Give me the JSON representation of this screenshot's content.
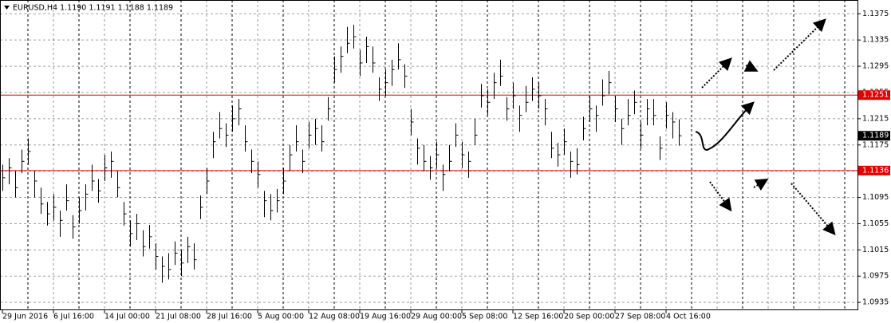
{
  "chart_data": {
    "type": "ohlc",
    "title": "EURUSD,H4  1.1190 1.1191 1.1188 1.1189",
    "categories": [
      "29 Jun 2016",
      null,
      null,
      null,
      null,
      null,
      null,
      null,
      "6 Jul 16:00",
      null,
      null,
      null,
      null,
      null,
      null,
      null,
      "14 Jul 00:00",
      null,
      null,
      null,
      null,
      null,
      null,
      null,
      "21 Jul 08:00",
      null,
      null,
      null,
      null,
      null,
      null,
      null,
      "28 Jul 16:00",
      null,
      null,
      null,
      null,
      null,
      null,
      null,
      "5 Aug 00:00",
      null,
      null,
      null,
      null,
      null,
      null,
      null,
      "12 Aug 08:00",
      null,
      null,
      null,
      null,
      null,
      null,
      null,
      "19 Aug 16:00",
      null,
      null,
      null,
      null,
      null,
      null,
      null,
      "29 Aug 00:00",
      null,
      null,
      null,
      null,
      null,
      null,
      null,
      "5 Sep 08:00",
      null,
      null,
      null,
      null,
      null,
      null,
      null,
      "12 Sep 16:00",
      null,
      null,
      null,
      null,
      null,
      null,
      null,
      "20 Sep 00:00",
      null,
      null,
      null,
      null,
      null,
      null,
      null,
      "27 Sep 08:00",
      null,
      null,
      null,
      null,
      null,
      null,
      null,
      "4 Oct 16:00",
      null,
      null
    ],
    "high": [
      1.1145,
      1.1155,
      1.1135,
      1.1168,
      1.1185,
      1.1135,
      1.111,
      1.1088,
      1.11,
      1.1075,
      1.1115,
      1.1068,
      1.1095,
      1.1115,
      1.1145,
      1.1123,
      1.116,
      1.1165,
      1.1135,
      1.1088,
      1.106,
      1.107,
      1.1045,
      1.1053,
      1.1025,
      1.1005,
      1.101,
      1.1028,
      1.1015,
      1.1035,
      1.1025,
      1.1098,
      1.114,
      1.1195,
      1.1225,
      1.1208,
      1.1235,
      1.1245,
      1.1205,
      1.1168,
      1.115,
      1.1105,
      1.11,
      1.1108,
      1.114,
      1.1175,
      1.1205,
      1.1168,
      1.121,
      1.1215,
      1.1205,
      1.1248,
      1.131,
      1.1325,
      1.1355,
      1.1358,
      1.132,
      1.134,
      1.1325,
      1.1278,
      1.129,
      1.1305,
      1.133,
      1.1298,
      1.123,
      1.1185,
      1.1175,
      1.1158,
      1.118,
      1.1145,
      1.1175,
      1.1208,
      1.118,
      1.1165,
      1.1215,
      1.1268,
      1.126,
      1.1285,
      1.1305,
      1.1248,
      1.127,
      1.1235,
      1.1265,
      1.1278,
      1.127,
      1.1245,
      1.1195,
      1.1178,
      1.12,
      1.1165,
      1.117,
      1.1218,
      1.125,
      1.1235,
      1.1275,
      1.1288,
      1.125,
      1.1215,
      1.1245,
      1.1258,
      1.121,
      1.1245,
      1.1245,
      1.1188,
      1.124,
      1.1225,
      1.1214
    ],
    "low": [
      1.1105,
      1.1115,
      1.1095,
      1.1132,
      1.1145,
      1.1095,
      1.107,
      1.1052,
      1.106,
      1.1035,
      1.1075,
      1.1032,
      1.1055,
      1.1075,
      1.1105,
      1.1087,
      1.112,
      1.1125,
      1.1095,
      1.1052,
      1.102,
      1.103,
      1.1005,
      1.1017,
      1.0985,
      1.0965,
      1.097,
      1.0992,
      1.0975,
      1.0995,
      1.0985,
      1.1062,
      1.11,
      1.1155,
      1.1185,
      1.1172,
      1.1195,
      1.1205,
      1.1165,
      1.1132,
      1.111,
      1.1065,
      1.106,
      1.1072,
      1.11,
      1.1135,
      1.1165,
      1.1132,
      1.117,
      1.1175,
      1.1165,
      1.1212,
      1.127,
      1.1285,
      1.1315,
      1.1322,
      1.128,
      1.13,
      1.1285,
      1.1242,
      1.125,
      1.1265,
      1.129,
      1.1262,
      1.119,
      1.1145,
      1.1135,
      1.1122,
      1.114,
      1.1105,
      1.1135,
      1.1172,
      1.114,
      1.1125,
      1.1175,
      1.1232,
      1.122,
      1.1245,
      1.1265,
      1.1212,
      1.123,
      1.1195,
      1.1225,
      1.1242,
      1.123,
      1.1205,
      1.1155,
      1.1142,
      1.116,
      1.1125,
      1.113,
      1.1182,
      1.121,
      1.1195,
      1.1235,
      1.1252,
      1.121,
      1.1175,
      1.1205,
      1.1222,
      1.117,
      1.1205,
      1.1205,
      1.1152,
      1.12,
      1.1185,
      1.1174
    ],
    "close": [
      1.1125,
      1.114,
      1.111,
      1.115,
      1.1165,
      1.112,
      1.1085,
      1.107,
      1.108,
      1.106,
      1.109,
      1.105,
      1.1075,
      1.11,
      1.112,
      1.1105,
      1.114,
      1.115,
      1.111,
      1.107,
      1.104,
      1.1055,
      1.102,
      1.1035,
      1.1005,
      1.099,
      1.0985,
      1.101,
      1.0995,
      1.102,
      1.1,
      1.108,
      1.112,
      1.118,
      1.12,
      1.119,
      1.1215,
      1.123,
      1.118,
      1.115,
      1.113,
      1.109,
      1.1075,
      1.109,
      1.112,
      1.116,
      1.118,
      1.115,
      1.119,
      1.12,
      1.118,
      1.123,
      1.129,
      1.131,
      1.133,
      1.134,
      1.13,
      1.1325,
      1.13,
      1.126,
      1.127,
      1.129,
      1.1305,
      1.128,
      1.121,
      1.117,
      1.115,
      1.114,
      1.116,
      1.113,
      1.115,
      1.119,
      1.116,
      1.115,
      1.119,
      1.125,
      1.124,
      1.127,
      1.128,
      1.123,
      1.125,
      1.122,
      1.124,
      1.126,
      1.125,
      1.123,
      1.117,
      1.116,
      1.118,
      1.115,
      1.1145,
      1.12,
      1.123,
      1.122,
      1.125,
      1.127,
      1.123,
      1.12,
      1.122,
      1.124,
      1.119,
      1.123,
      1.122,
      1.117,
      1.122,
      1.121,
      1.1189
    ],
    "color": "#000000",
    "ylim": [
      1.0923,
      1.1396
    ],
    "yticks": [
      1.0935,
      1.0975,
      1.1015,
      1.1055,
      1.1095,
      1.1135,
      1.1175,
      1.1215,
      1.1255,
      1.1295,
      1.1335,
      1.1375
    ],
    "grid": true,
    "levels": [
      {
        "value": 1.1251,
        "color": "#e00000"
      },
      {
        "value": 1.1136,
        "color": "#e00000"
      }
    ],
    "current_price": 1.1189
  }
}
